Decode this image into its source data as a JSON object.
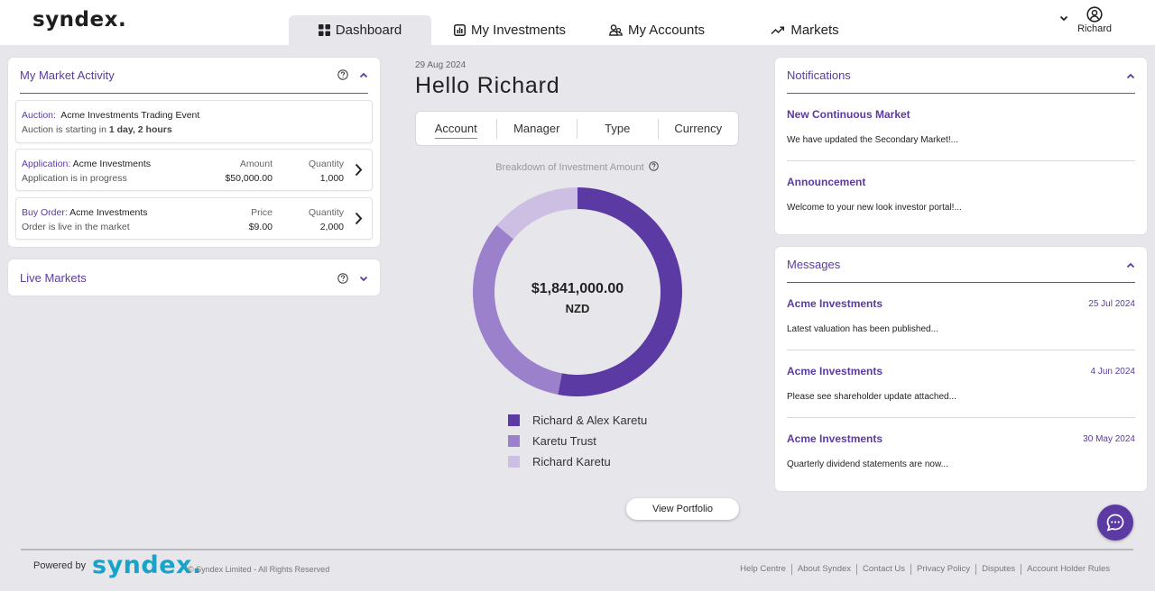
{
  "header": {
    "logo": "syndex.",
    "tabs": [
      {
        "label": "Dashboard",
        "icon": "grid-icon"
      },
      {
        "label": "My Investments",
        "icon": "bar-chart-icon"
      },
      {
        "label": "My Accounts",
        "icon": "users-icon"
      },
      {
        "label": "Markets",
        "icon": "trend-up-icon"
      }
    ],
    "user_name": "Richard"
  },
  "market_activity": {
    "title": "My Market Activity",
    "auction": {
      "prefix": "Auction:",
      "name": "Acme Investments Trading Event",
      "status_prefix": "Auction is starting in",
      "status_time": "1 day, 2 hours"
    },
    "application": {
      "prefix": "Application:",
      "name": "Acme Investments",
      "status": "Application is in progress",
      "col1_label": "Amount",
      "col1_value": "$50,000.00",
      "col2_label": "Quantity",
      "col2_value": "1,000"
    },
    "buy_order": {
      "prefix": "Buy Order:",
      "name": "Acme Investments",
      "status": "Order is live in the market",
      "col1_label": "Price",
      "col1_value": "$9.00",
      "col2_label": "Quantity",
      "col2_value": "2,000"
    }
  },
  "live_markets": {
    "title": "Live Markets"
  },
  "center": {
    "date": "29 Aug 2024",
    "greeting": "Hello Richard",
    "filters": [
      "Account",
      "Manager",
      "Type",
      "Currency"
    ],
    "breakdown_label": "Breakdown of Investment Amount",
    "total": "$1,841,000.00",
    "currency": "NZD",
    "view_button": "View Portfolio"
  },
  "chart_data": {
    "type": "pie",
    "donut": true,
    "series": [
      {
        "name": "Richard & Alex Karetu",
        "value": 0.53,
        "color": "#5b3aa4"
      },
      {
        "name": "Karetu Trust",
        "value": 0.33,
        "color": "#9b80cc"
      },
      {
        "name": "Richard Karetu",
        "value": 0.14,
        "color": "#cdbfe4"
      }
    ]
  },
  "notifications": {
    "title": "Notifications",
    "items": [
      {
        "title": "New Continuous Market",
        "body": "We have updated the Secondary Market!..."
      },
      {
        "title": "Announcement",
        "body": "Welcome to your new look investor portal!..."
      }
    ]
  },
  "messages": {
    "title": "Messages",
    "items": [
      {
        "title": "Acme Investments",
        "date": "25 Jul 2024",
        "body": "Latest valuation has been published..."
      },
      {
        "title": "Acme Investments",
        "date": "4 Jun 2024",
        "body": "Please see shareholder update attached..."
      },
      {
        "title": "Acme Investments",
        "date": "30 May 2024",
        "body": "Quarterly dividend statements are now..."
      }
    ]
  },
  "footer": {
    "powered_by": "Powered by",
    "logo": "syndex.",
    "copyright": "© Syndex Limited - All Rights Reserved",
    "links": [
      "Help Centre",
      "About Syndex",
      "Contact Us",
      "Privacy Policy",
      "Disputes",
      "Account Holder Rules"
    ]
  }
}
